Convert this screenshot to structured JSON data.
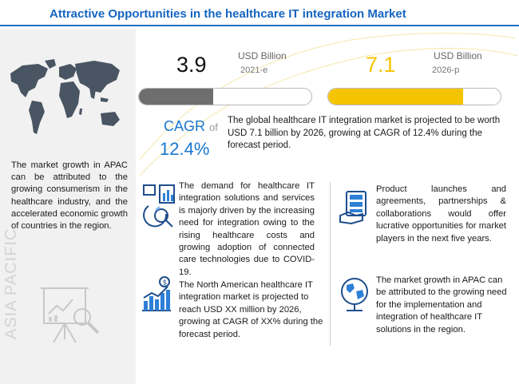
{
  "header": {
    "title": "Attractive Opportunities in the healthcare IT integration Market"
  },
  "left_panel": {
    "region_label": "ASIA PACIFIC",
    "text": "The market growth in APAC can be attributed to the growing consumerism in the healthcare industry, and the accelerated economic growth of countries in the region."
  },
  "metrics": {
    "start": {
      "value": "3.9",
      "unit": "USD Billion",
      "year": "2021-e"
    },
    "end": {
      "value": "7.1",
      "unit": "USD Billion",
      "year": "2026-p"
    },
    "cagr_label": "CAGR",
    "cagr_of": "of",
    "cagr_value": "12.4%",
    "summary": "The global healthcare IT integration market is projected to be worth USD 7.1 billion by 2026, growing at CAGR of 12.4% during the forecast period."
  },
  "chart_data": {
    "type": "bar",
    "categories": [
      "2021-e",
      "2026-p"
    ],
    "values": [
      3.9,
      7.1
    ],
    "ylabel": "USD Billion",
    "cagr": "12.4%",
    "colors": [
      "#6e6e6e",
      "#f5c400"
    ],
    "orientation": "horizontal"
  },
  "insights": {
    "demand": "The demand for healthcare IT integration solutions and services is majorly driven by the increasing need for integration owing to the rising healthcare costs and growing adoption of connected care technologies due to COVID-19.",
    "north_america": "The North American healthcare IT integration market is projected to reach USD XX million by 2026, growing at CAGR of XX% during the forecast period.",
    "product_launches": "Product launches and agreements, partnerships & collaborations would offer lucrative opportunities for market players in the next five years.",
    "apac_growth": "The market growth in APAC can be attributed to the growing need for the implementation and integration of healthcare IT solutions in the region."
  },
  "colors": {
    "title": "#1565c0",
    "accent_blue": "#1976d2",
    "gray_bar": "#6e6e6e",
    "yellow_bar": "#f5c400",
    "panel_bg": "#f1f1f1"
  }
}
